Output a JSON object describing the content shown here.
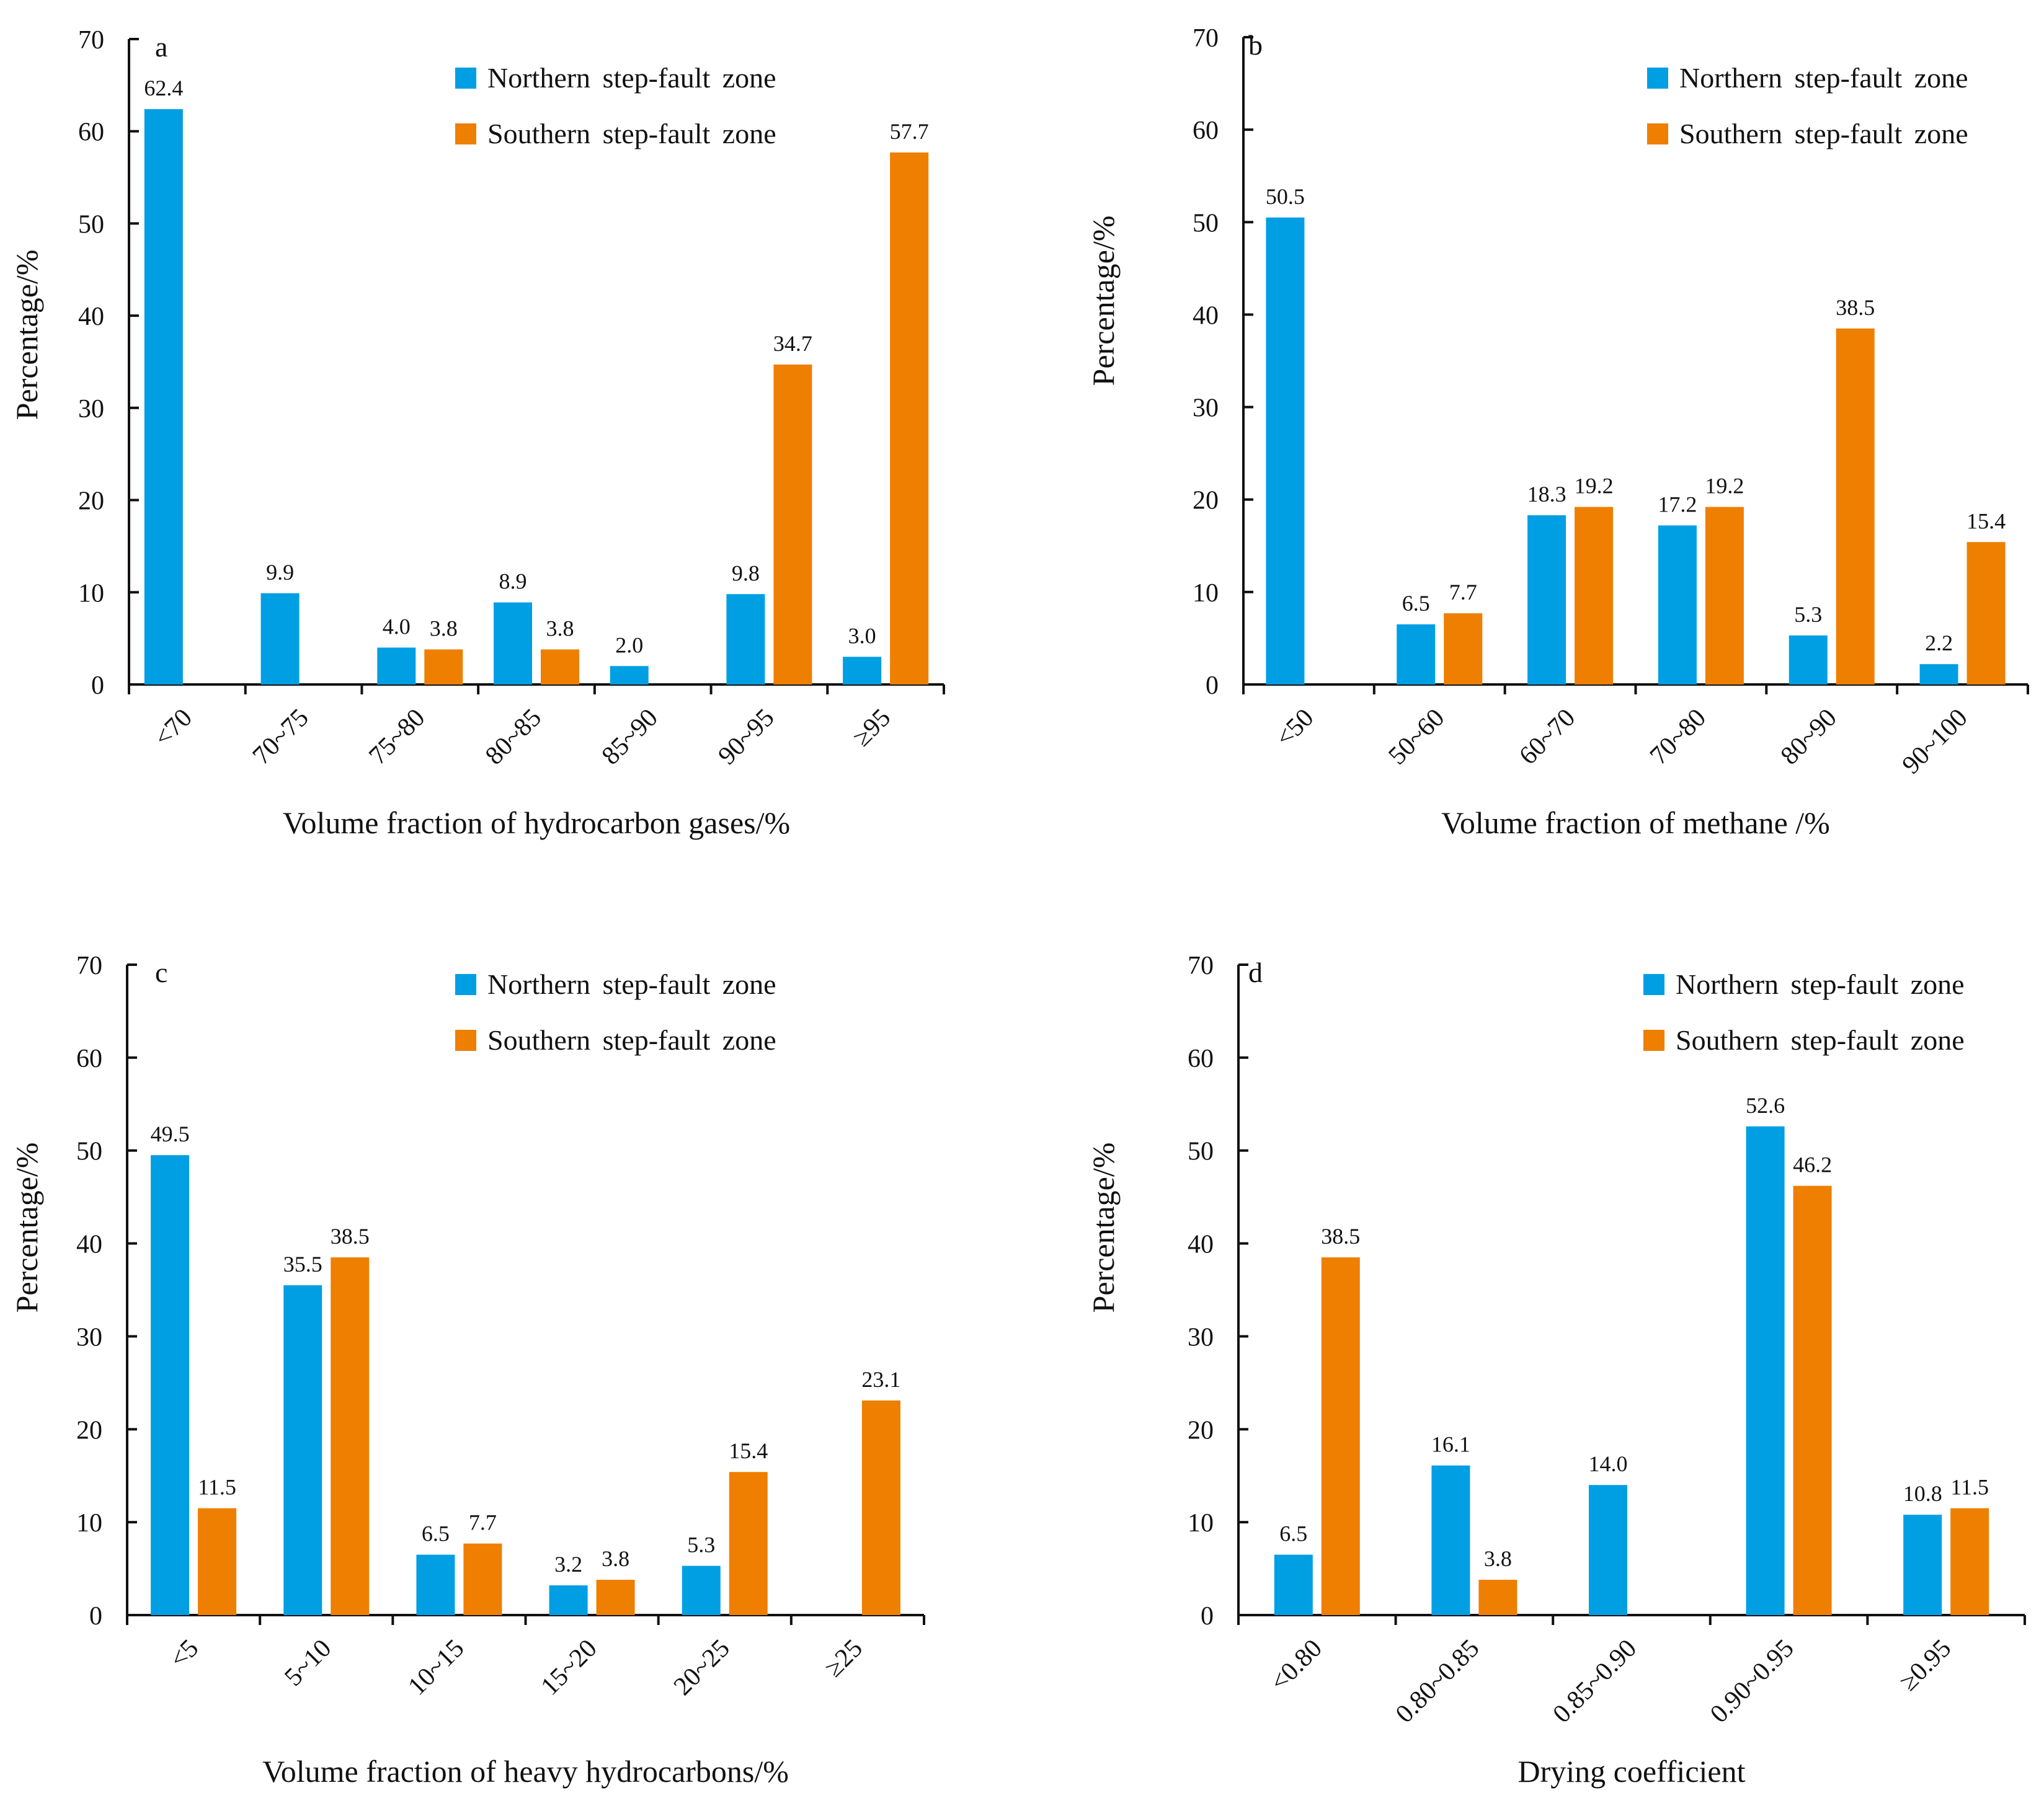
{
  "colors": {
    "northern": "#009FE3",
    "southern": "#EE7F00",
    "axis": "#111111"
  },
  "chart_data": [
    {
      "type": "bar",
      "panel_label": "a",
      "xlabel": "Volume fraction of hydrocarbon gases/%",
      "ylabel": "Percentage/%",
      "ylim": [
        0,
        70
      ],
      "yticks": [
        "0",
        "10",
        "20",
        "30",
        "40",
        "50",
        "60",
        "70"
      ],
      "categories": [
        "<70",
        "70~75",
        "75~80",
        "80~85",
        "85~90",
        "90~95",
        "≥95"
      ],
      "legend_position": "top-right",
      "series": [
        {
          "name": "Northern step-fault zone",
          "color_key": "northern",
          "values": [
            62.4,
            9.9,
            4.0,
            8.9,
            2.0,
            9.8,
            3.0
          ],
          "labels": [
            "62.4",
            "9.9",
            "4.0",
            "8.9",
            "2.0",
            "9.8",
            "3.0"
          ]
        },
        {
          "name": "Southern step-fault zone",
          "color_key": "southern",
          "values": [
            null,
            null,
            3.8,
            3.8,
            null,
            34.7,
            57.7
          ],
          "labels": [
            null,
            null,
            "3.8",
            "3.8",
            null,
            "34.7",
            "57.7"
          ]
        }
      ]
    },
    {
      "type": "bar",
      "panel_label": "b",
      "xlabel": "Volume fraction of methane /%",
      "ylabel": "Percentage/%",
      "ylim": [
        0,
        70
      ],
      "yticks": [
        "0",
        "10",
        "20",
        "30",
        "40",
        "50",
        "60",
        "70"
      ],
      "categories": [
        "<50",
        "50~60",
        "60~70",
        "70~80",
        "80~90",
        "90~100"
      ],
      "legend_position": "top-right",
      "series": [
        {
          "name": "Northern step-fault zone",
          "color_key": "northern",
          "values": [
            50.5,
            6.5,
            18.3,
            17.2,
            5.3,
            2.2
          ],
          "labels": [
            "50.5",
            "6.5",
            "18.3",
            "17.2",
            "5.3",
            "2.2"
          ]
        },
        {
          "name": "Southern step-fault zone",
          "color_key": "southern",
          "values": [
            null,
            7.7,
            19.2,
            19.2,
            38.5,
            15.4
          ],
          "labels": [
            null,
            "7.7",
            "19.2",
            "19.2",
            "38.5",
            "15.4"
          ]
        }
      ]
    },
    {
      "type": "bar",
      "panel_label": "c",
      "xlabel": "Volume fraction of heavy hydrocarbons/%",
      "ylabel": "Percentage/%",
      "ylim": [
        0,
        70
      ],
      "yticks": [
        "0",
        "10",
        "20",
        "30",
        "40",
        "50",
        "60",
        "70"
      ],
      "categories": [
        "<5",
        "5~10",
        "10~15",
        "15~20",
        "20~25",
        "≥25"
      ],
      "legend_position": "top-right",
      "series": [
        {
          "name": "Northern step-fault zone",
          "color_key": "northern",
          "values": [
            49.5,
            35.5,
            6.5,
            3.2,
            5.3,
            null
          ],
          "labels": [
            "49.5",
            "35.5",
            "6.5",
            "3.2",
            "5.3",
            null
          ]
        },
        {
          "name": "Southern step-fault zone",
          "color_key": "southern",
          "values": [
            11.5,
            38.5,
            7.7,
            3.8,
            15.4,
            23.1
          ],
          "labels": [
            "11.5",
            "38.5",
            "7.7",
            "3.8",
            "15.4",
            "23.1"
          ]
        }
      ]
    },
    {
      "type": "bar",
      "panel_label": "d",
      "xlabel": "Drying coefficient",
      "ylabel": "Percentage/%",
      "ylim": [
        0,
        70
      ],
      "yticks": [
        "0",
        "10",
        "20",
        "30",
        "40",
        "50",
        "60",
        "70"
      ],
      "categories": [
        "<0.80",
        "0.80~0.85",
        "0.85~0.90",
        "0.90~0.95",
        "≥0.95"
      ],
      "legend_position": "top-right",
      "series": [
        {
          "name": "Northern step-fault zone",
          "color_key": "northern",
          "values": [
            6.5,
            16.1,
            14.0,
            52.6,
            10.8
          ],
          "labels": [
            "6.5",
            "16.1",
            "14.0",
            "52.6",
            "10.8"
          ]
        },
        {
          "name": "Southern step-fault zone",
          "color_key": "southern",
          "values": [
            38.5,
            3.8,
            null,
            46.2,
            11.5
          ],
          "labels": [
            "38.5",
            "3.8",
            null,
            "46.2",
            "11.5"
          ]
        }
      ]
    }
  ]
}
